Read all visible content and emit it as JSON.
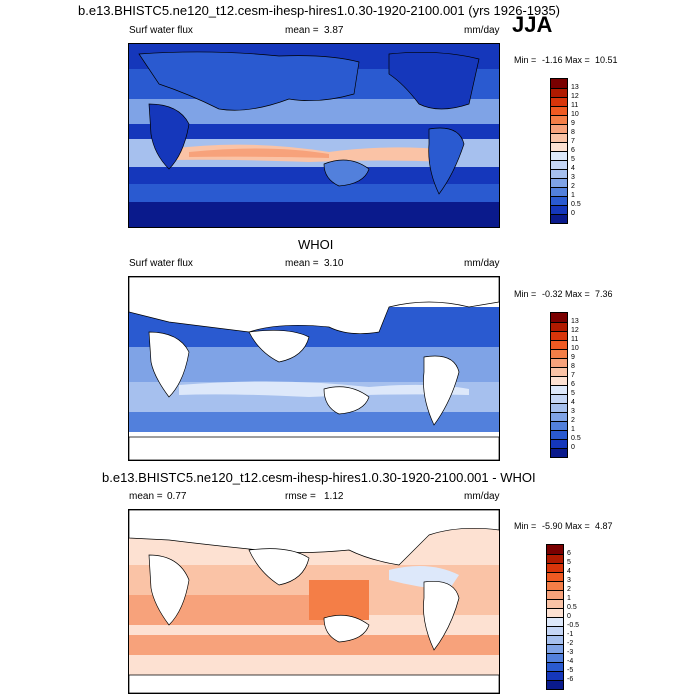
{
  "header": {
    "title": "b.e13.BHISTC5.ne120_t12.cesm-ihesp-hires1.0.30-1920-2100.001 (yrs 1926-1935)",
    "season": "JJA"
  },
  "panel1": {
    "variable": "Surf water flux",
    "mean_label": "mean =",
    "mean": "3.87",
    "units": "mm/day",
    "min_label": "Min =",
    "min": "-1.16",
    "max_label": "Max =",
    "max": "10.51"
  },
  "panel2": {
    "heading": "WHOI",
    "variable": "Surf water flux",
    "mean_label": "mean =",
    "mean": "3.10",
    "units": "mm/day",
    "min_label": "Min =",
    "min": "-0.32",
    "max_label": "Max =",
    "max": "7.36"
  },
  "panel3": {
    "heading": "b.e13.BHISTC5.ne120_t12.cesm-ihesp-hires1.0.30-1920-2100.001 - WHOI",
    "mean_label": "mean =",
    "mean": "0.77",
    "rmse_label": "rmse =",
    "rmse": "1.12",
    "units": "mm/day",
    "min_label": "Min =",
    "min": "-5.90",
    "max_label": "Max =",
    "max": "4.87"
  },
  "colorbar_abs": {
    "labels": [
      "13",
      "12",
      "11",
      "10",
      "9",
      "8",
      "7",
      "6",
      "5",
      "4",
      "3",
      "2",
      "1",
      "0.5",
      "0"
    ],
    "colors": [
      "#7a0000",
      "#b01a00",
      "#d8350a",
      "#ef5a22",
      "#f47e47",
      "#f7a27b",
      "#fac3a6",
      "#fde1d2",
      "#dde8fa",
      "#c5d6f5",
      "#a6c0ee",
      "#7fa3e6",
      "#5280dc",
      "#2a5ad0",
      "#1537bb",
      "#0a1a8c"
    ]
  },
  "colorbar_diff": {
    "labels": [
      "6",
      "5",
      "4",
      "3",
      "2",
      "1",
      "0.5",
      "0",
      "-0.5",
      "-1",
      "-2",
      "-3",
      "-4",
      "-5",
      "-6"
    ],
    "colors": [
      "#7a0000",
      "#b01a00",
      "#d8350a",
      "#ef5a22",
      "#f47e47",
      "#f7a27b",
      "#fac3a6",
      "#fde1d2",
      "#dde8fa",
      "#c5d6f5",
      "#a6c0ee",
      "#7fa3e6",
      "#5280dc",
      "#2a5ad0",
      "#1537bb",
      "#0a1a8c"
    ]
  }
}
